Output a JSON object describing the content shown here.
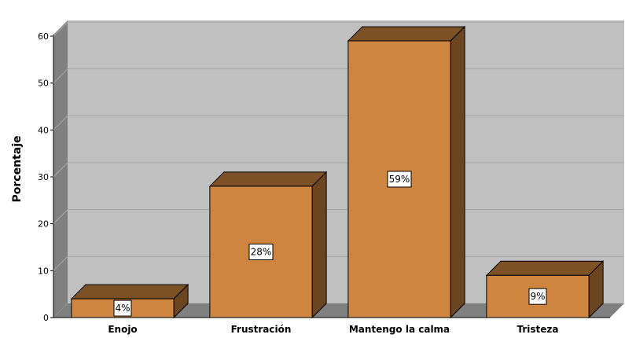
{
  "chart_data": {
    "type": "bar",
    "ylabel": "Porcentaje",
    "xlabel": "",
    "ylim": [
      0,
      60
    ],
    "yticks": [
      0,
      10,
      20,
      30,
      40,
      50,
      60
    ],
    "grid": true,
    "categories": [
      "Enojo",
      "Frustración",
      "Mantengo la calma",
      "Tristeza"
    ],
    "values": [
      4,
      28,
      59,
      9
    ],
    "data_labels": [
      "4%",
      "28%",
      "59%",
      "9%"
    ],
    "colors": {
      "bar_front": "#CD8540",
      "bar_top": "#7D5126",
      "bar_side": "#6B4520",
      "plot_back": "#C0C0C0",
      "plot_wall": "#808080",
      "plot_floor": "#808080",
      "grid": "#A8A8A8"
    }
  }
}
